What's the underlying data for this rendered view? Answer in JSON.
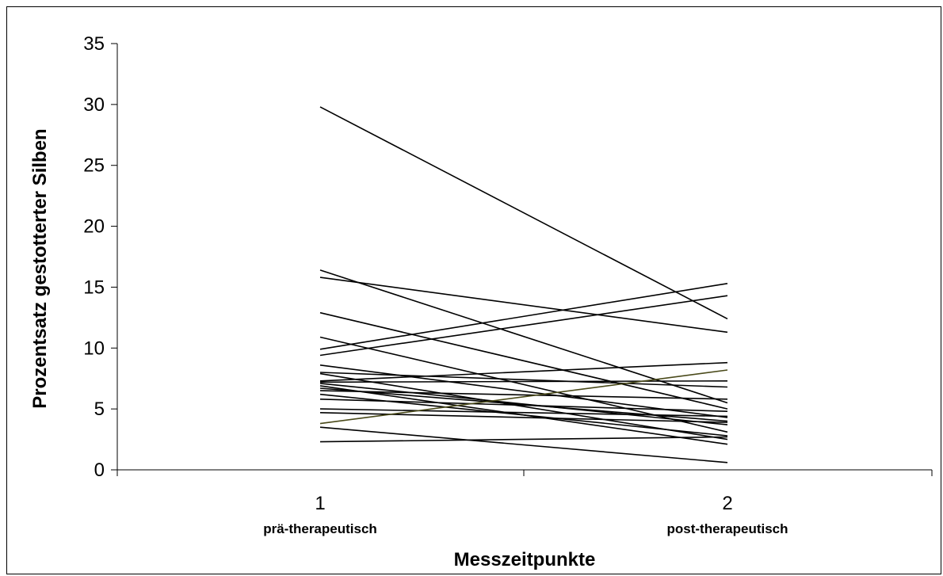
{
  "chart_data": {
    "type": "line",
    "title": "",
    "xlabel": "Messzeitpunkte",
    "ylabel": "Prozentsatz gestotterter Silben",
    "ylim": [
      0,
      35
    ],
    "yticks": [
      "0",
      "5",
      "10",
      "15",
      "20",
      "25",
      "30",
      "35"
    ],
    "categories": [
      {
        "number": "1",
        "label": "prä-therapeutisch"
      },
      {
        "number": "2",
        "label": "post-therapeutisch"
      }
    ],
    "line_color": "#000000",
    "highlight_color": "#4a4a1a",
    "grid": false,
    "legend": "none",
    "series": [
      {
        "values": [
          29.8,
          12.4
        ]
      },
      {
        "values": [
          16.4,
          5.5
        ]
      },
      {
        "values": [
          15.8,
          11.3
        ]
      },
      {
        "values": [
          12.9,
          5.0
        ]
      },
      {
        "values": [
          10.9,
          3.1
        ]
      },
      {
        "values": [
          9.9,
          15.3
        ]
      },
      {
        "values": [
          9.4,
          14.3
        ]
      },
      {
        "values": [
          8.6,
          4.3
        ]
      },
      {
        "values": [
          8.0,
          6.8
        ]
      },
      {
        "values": [
          7.9,
          2.5
        ]
      },
      {
        "values": [
          7.3,
          8.8
        ]
      },
      {
        "values": [
          7.2,
          7.3
        ]
      },
      {
        "values": [
          7.1,
          3.7
        ]
      },
      {
        "values": [
          6.9,
          2.1
        ]
      },
      {
        "values": [
          6.7,
          4.0
        ]
      },
      {
        "values": [
          6.5,
          5.8
        ]
      },
      {
        "values": [
          6.2,
          2.8
        ]
      },
      {
        "values": [
          5.8,
          4.8
        ]
      },
      {
        "values": [
          5.0,
          4.4
        ]
      },
      {
        "values": [
          4.7,
          3.9
        ]
      },
      {
        "values": [
          3.8,
          8.2
        ],
        "highlight": true
      },
      {
        "values": [
          3.5,
          0.6
        ]
      },
      {
        "values": [
          2.3,
          2.7
        ]
      }
    ]
  }
}
